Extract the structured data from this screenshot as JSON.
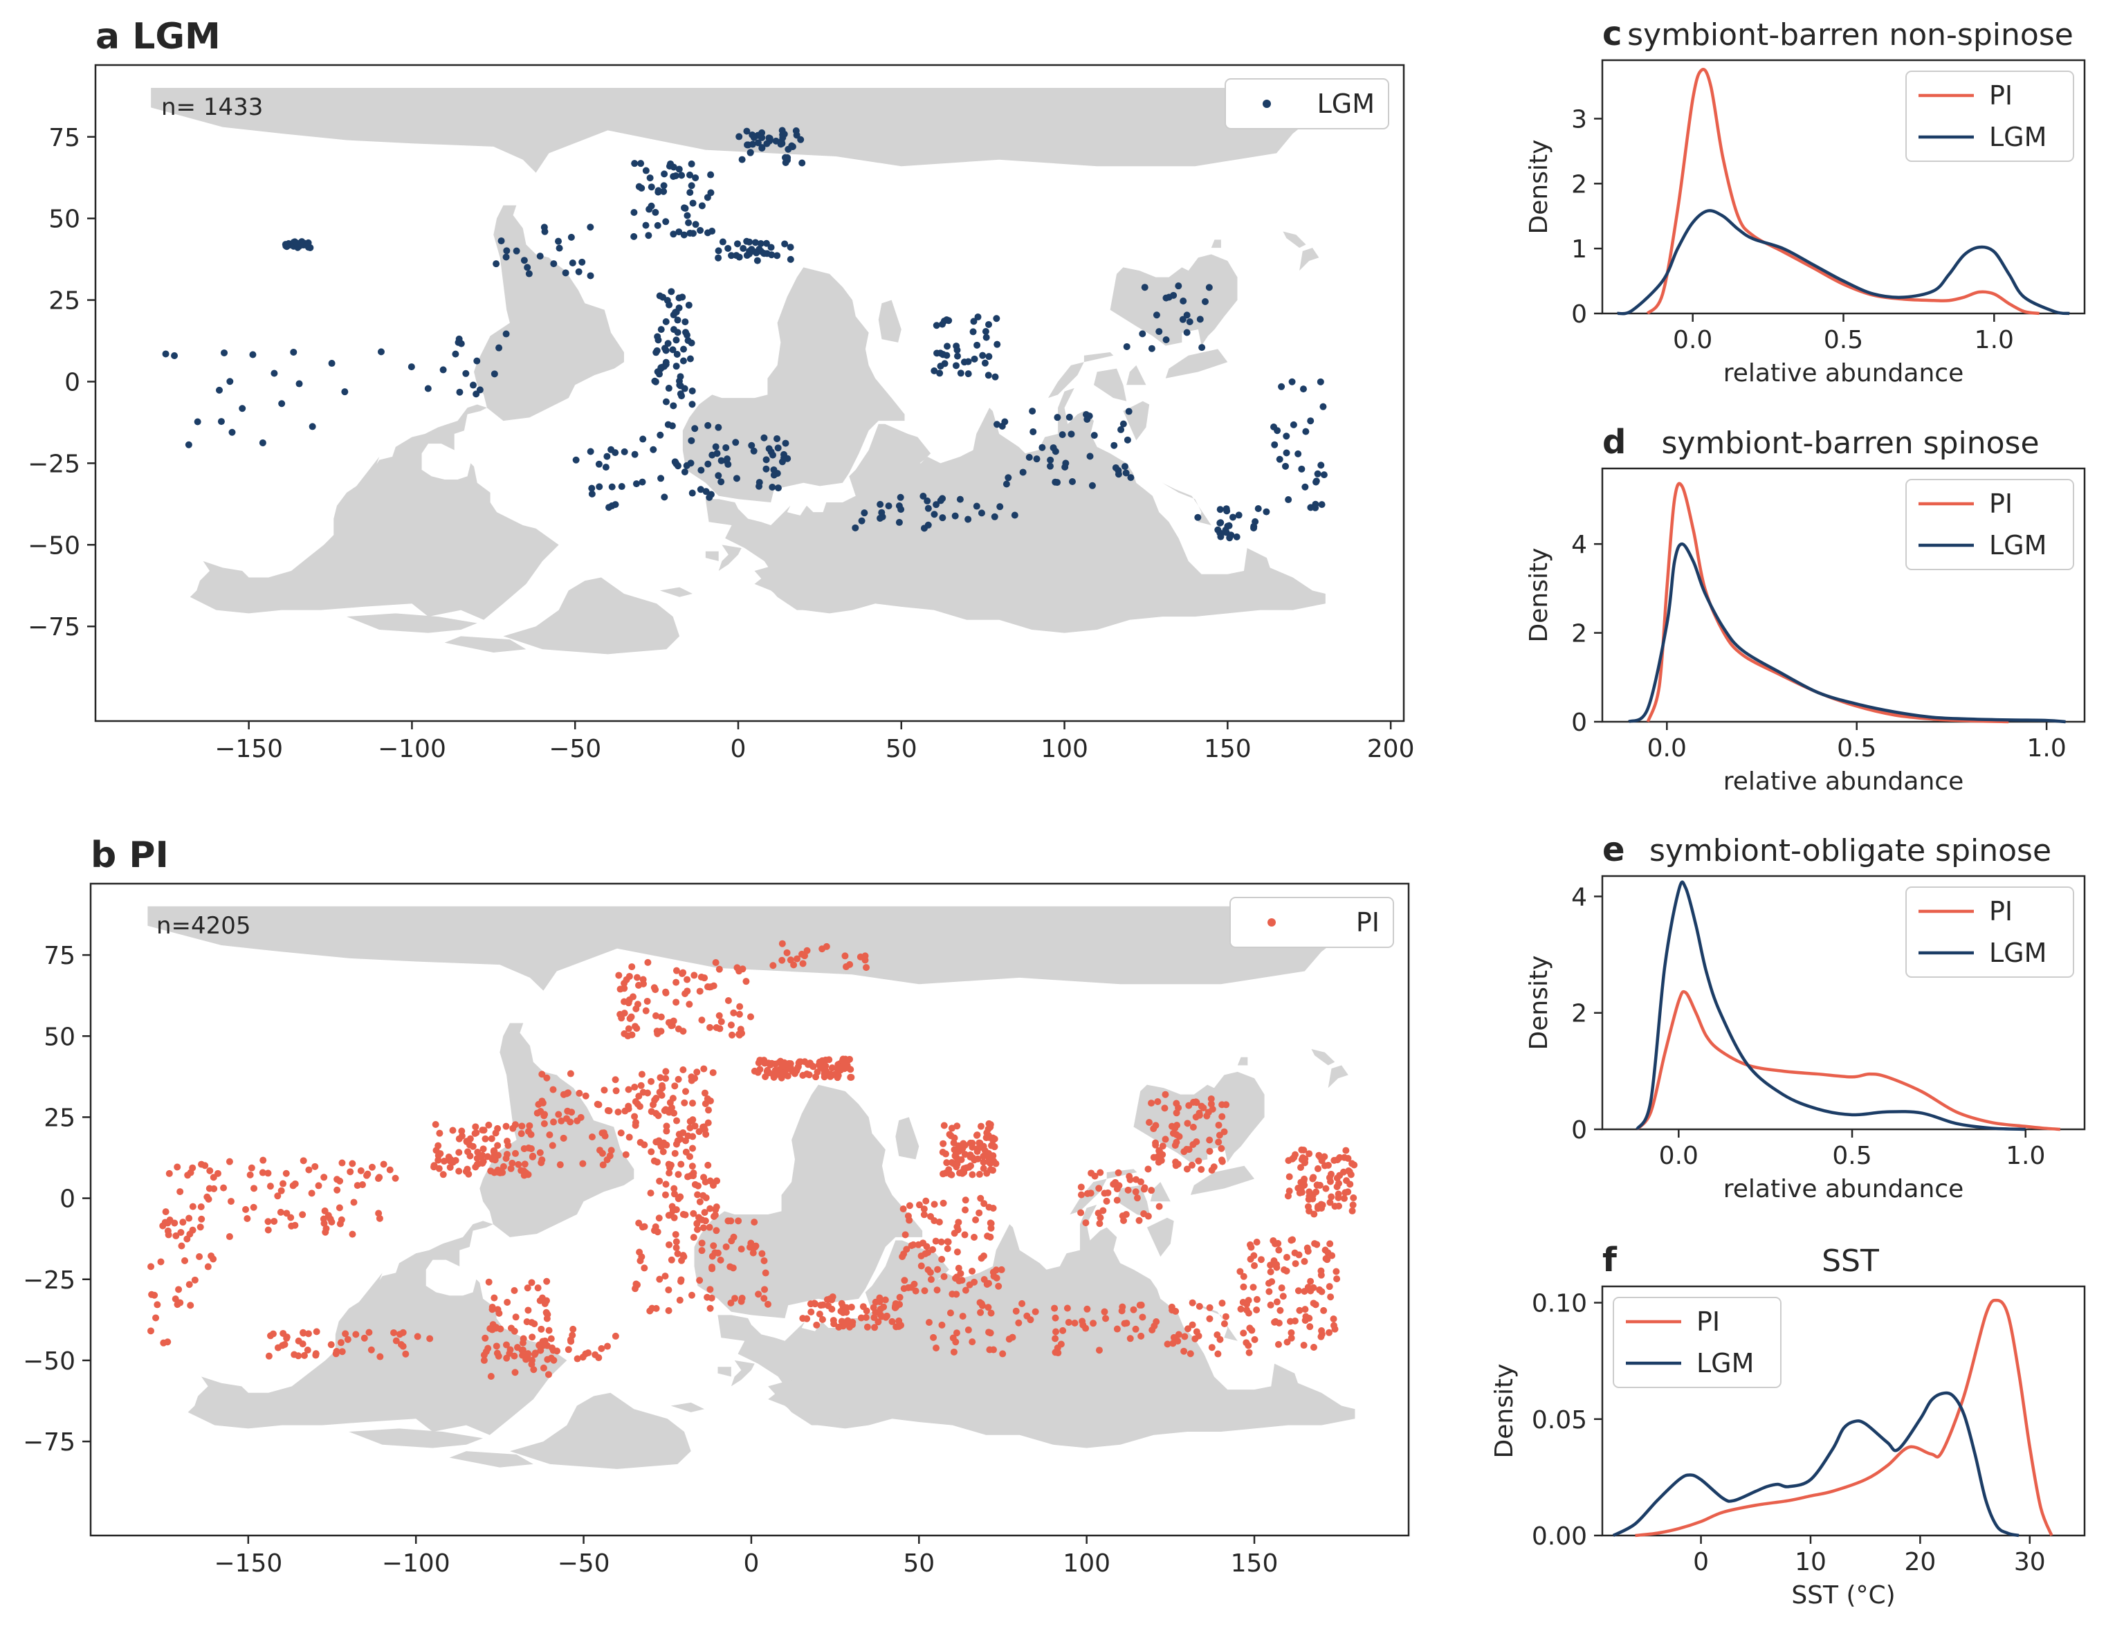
{
  "colors": {
    "pi": "#e8604c",
    "lgm": "#1c3d66",
    "land": "#d3d3d3"
  },
  "maps": [
    {
      "id": "a",
      "letter": "a",
      "title": "LGM",
      "n_label": "n= 1433",
      "legend": "LGM",
      "color": "#1c3d66",
      "xlim": [
        -197,
        204
      ],
      "ylim": [
        -104,
        97
      ],
      "xticks": [
        -150,
        -100,
        -50,
        0,
        50,
        100,
        150,
        200
      ],
      "yticks": [
        75,
        50,
        25,
        0,
        -25,
        -50,
        -75
      ],
      "tick_labels_x": [
        "−150",
        "−100",
        "−50",
        "0",
        "50",
        "100",
        "150",
        "200"
      ],
      "tick_labels_y": [
        "75",
        "50",
        "25",
        "0",
        "−25",
        "−50",
        "−75"
      ],
      "seed": 11,
      "cluster_count": 520
    },
    {
      "id": "b",
      "letter": "b",
      "title": "PI",
      "n_label": "n=4205",
      "legend": "PI",
      "color": "#e8604c",
      "xlim": [
        -197,
        196
      ],
      "ylim": [
        -104,
        97
      ],
      "xticks": [
        -150,
        -100,
        -50,
        0,
        50,
        100,
        150
      ],
      "yticks": [
        75,
        50,
        25,
        0,
        -25,
        -50,
        -75
      ],
      "tick_labels_x": [
        "−150",
        "−100",
        "−50",
        "0",
        "50",
        "100",
        "150"
      ],
      "tick_labels_y": [
        "75",
        "50",
        "25",
        "0",
        "−25",
        "−50",
        "−75"
      ],
      "seed": 29,
      "cluster_count": 1500
    }
  ],
  "chart_data": [
    {
      "id": "c",
      "type": "line",
      "letter": "c",
      "title": "symbiont-barren non-spinose",
      "xlabel": "relative abundance",
      "ylabel": "Density",
      "xlim": [
        -0.3,
        1.3
      ],
      "ylim": [
        0,
        3.9
      ],
      "xticks": [
        0.0,
        0.5,
        1.0
      ],
      "xtick_labels": [
        "0.0",
        "0.5",
        "1.0"
      ],
      "yticks": [
        0,
        1,
        2,
        3
      ],
      "ytick_labels": [
        "0",
        "1",
        "2",
        "3"
      ],
      "legend_position": "top-right",
      "series": [
        {
          "name": "PI",
          "color": "#e8604c",
          "x": [
            -0.15,
            -0.1,
            -0.05,
            0.0,
            0.03,
            0.06,
            0.1,
            0.15,
            0.2,
            0.3,
            0.4,
            0.5,
            0.6,
            0.7,
            0.8,
            0.85,
            0.9,
            0.95,
            1.0,
            1.05,
            1.1,
            1.15
          ],
          "y": [
            0.0,
            0.3,
            1.6,
            3.3,
            3.75,
            3.5,
            2.4,
            1.5,
            1.2,
            0.95,
            0.7,
            0.45,
            0.28,
            0.22,
            0.2,
            0.2,
            0.25,
            0.33,
            0.3,
            0.15,
            0.03,
            0.0
          ]
        },
        {
          "name": "LGM",
          "color": "#1c3d66",
          "x": [
            -0.25,
            -0.2,
            -0.1,
            -0.05,
            0.0,
            0.05,
            0.1,
            0.15,
            0.2,
            0.3,
            0.4,
            0.5,
            0.6,
            0.7,
            0.8,
            0.85,
            0.9,
            0.95,
            1.0,
            1.05,
            1.1,
            1.2,
            1.25
          ],
          "y": [
            0.0,
            0.05,
            0.5,
            1.0,
            1.4,
            1.58,
            1.5,
            1.3,
            1.15,
            1.0,
            0.75,
            0.5,
            0.3,
            0.25,
            0.35,
            0.6,
            0.9,
            1.02,
            0.95,
            0.6,
            0.25,
            0.03,
            0.0
          ]
        }
      ]
    },
    {
      "id": "d",
      "type": "line",
      "letter": "d",
      "title": "symbiont-barren spinose",
      "xlabel": "relative abundance",
      "ylabel": "Density",
      "xlim": [
        -0.17,
        1.1
      ],
      "ylim": [
        0,
        5.7
      ],
      "xticks": [
        0.0,
        0.5,
        1.0
      ],
      "xtick_labels": [
        "0.0",
        "0.5",
        "1.0"
      ],
      "yticks": [
        0,
        2,
        4
      ],
      "ytick_labels": [
        "0",
        "2",
        "4"
      ],
      "legend_position": "top-right",
      "series": [
        {
          "name": "PI",
          "color": "#e8604c",
          "x": [
            -0.05,
            -0.02,
            0.0,
            0.02,
            0.04,
            0.07,
            0.1,
            0.15,
            0.2,
            0.3,
            0.4,
            0.5,
            0.6,
            0.7,
            0.8,
            0.9
          ],
          "y": [
            0.0,
            0.8,
            3.0,
            5.0,
            5.3,
            4.3,
            3.0,
            2.0,
            1.5,
            1.05,
            0.65,
            0.35,
            0.15,
            0.06,
            0.02,
            0.0
          ]
        },
        {
          "name": "LGM",
          "color": "#1c3d66",
          "x": [
            -0.1,
            -0.05,
            0.0,
            0.02,
            0.04,
            0.07,
            0.1,
            0.15,
            0.2,
            0.3,
            0.4,
            0.5,
            0.6,
            0.7,
            0.8,
            0.9,
            1.0,
            1.05
          ],
          "y": [
            0.0,
            0.3,
            2.2,
            3.6,
            4.0,
            3.6,
            2.9,
            2.1,
            1.6,
            1.1,
            0.65,
            0.4,
            0.22,
            0.1,
            0.06,
            0.04,
            0.03,
            0.0
          ]
        }
      ]
    },
    {
      "id": "e",
      "type": "line",
      "letter": "e",
      "title": "symbiont-obligate spinose",
      "xlabel": "relative abundance",
      "ylabel": "Density",
      "xlim": [
        -0.22,
        1.17
      ],
      "ylim": [
        0,
        4.35
      ],
      "xticks": [
        0.0,
        0.5,
        1.0
      ],
      "xtick_labels": [
        "0.0",
        "0.5",
        "1.0"
      ],
      "yticks": [
        0,
        2,
        4
      ],
      "ytick_labels": [
        "0",
        "2",
        "4"
      ],
      "legend_position": "top-right",
      "series": [
        {
          "name": "PI",
          "color": "#e8604c",
          "x": [
            -0.12,
            -0.08,
            -0.04,
            0.0,
            0.02,
            0.05,
            0.08,
            0.12,
            0.2,
            0.3,
            0.4,
            0.5,
            0.55,
            0.6,
            0.7,
            0.8,
            0.9,
            1.0,
            1.05,
            1.1
          ],
          "y": [
            0.0,
            0.3,
            1.3,
            2.2,
            2.35,
            2.0,
            1.6,
            1.35,
            1.1,
            1.0,
            0.95,
            0.9,
            0.95,
            0.9,
            0.65,
            0.3,
            0.12,
            0.05,
            0.02,
            0.0
          ]
        },
        {
          "name": "LGM",
          "color": "#1c3d66",
          "x": [
            -0.12,
            -0.08,
            -0.04,
            0.0,
            0.02,
            0.05,
            0.08,
            0.12,
            0.2,
            0.3,
            0.4,
            0.5,
            0.6,
            0.7,
            0.8,
            0.9,
            1.0
          ],
          "y": [
            0.0,
            0.5,
            2.8,
            4.1,
            4.15,
            3.5,
            2.7,
            2.0,
            1.1,
            0.6,
            0.35,
            0.25,
            0.3,
            0.28,
            0.1,
            0.02,
            0.0
          ]
        }
      ]
    },
    {
      "id": "f",
      "type": "line",
      "letter": "f",
      "title": "SST",
      "xlabel": "SST (°C)",
      "ylabel": "Density",
      "xlim": [
        -9,
        35
      ],
      "ylim": [
        0,
        0.107
      ],
      "xticks": [
        0,
        10,
        20,
        30
      ],
      "xtick_labels": [
        "0",
        "10",
        "20",
        "30"
      ],
      "yticks": [
        0.0,
        0.05,
        0.1
      ],
      "ytick_labels": [
        "0.00",
        "0.05",
        "0.10"
      ],
      "legend_position": "top-left",
      "series": [
        {
          "name": "PI",
          "color": "#e8604c",
          "x": [
            -6,
            -4,
            -2,
            0,
            2,
            5,
            8,
            10,
            12,
            15,
            17,
            19,
            21,
            22,
            24,
            26,
            27,
            28,
            29,
            30,
            31,
            32
          ],
          "y": [
            0.0,
            0.001,
            0.003,
            0.006,
            0.01,
            0.013,
            0.015,
            0.017,
            0.019,
            0.024,
            0.03,
            0.038,
            0.035,
            0.036,
            0.06,
            0.095,
            0.101,
            0.095,
            0.07,
            0.038,
            0.012,
            0.0
          ]
        },
        {
          "name": "LGM",
          "color": "#1c3d66",
          "x": [
            -8,
            -6,
            -4,
            -2,
            -1,
            0,
            2,
            3,
            5,
            6,
            7,
            8,
            10,
            12,
            13,
            14,
            15,
            17,
            18,
            20,
            21,
            22,
            23,
            24,
            25,
            26,
            27,
            28,
            29
          ],
          "y": [
            0.0,
            0.005,
            0.015,
            0.024,
            0.026,
            0.024,
            0.016,
            0.015,
            0.019,
            0.021,
            0.022,
            0.021,
            0.024,
            0.037,
            0.046,
            0.049,
            0.048,
            0.04,
            0.037,
            0.05,
            0.058,
            0.061,
            0.06,
            0.052,
            0.035,
            0.015,
            0.004,
            0.001,
            0.0
          ]
        }
      ]
    }
  ]
}
